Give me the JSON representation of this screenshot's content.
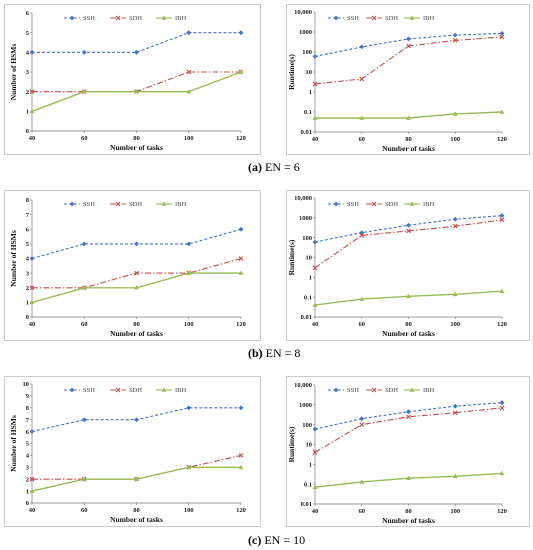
{
  "colors": {
    "SSH": "#4472C4",
    "SDH": "#C0504D",
    "IBH": "#9BBB59",
    "frame": "#bfbfbf"
  },
  "panels": [
    {
      "caption_letter": "(a)",
      "caption_rest": " EN = 6"
    },
    {
      "caption_letter": "(b)",
      "caption_rest": " EN = 8"
    },
    {
      "caption_letter": "(c)",
      "caption_rest": " EN = 10"
    }
  ],
  "chart_data": [
    {
      "type": "line",
      "xlabel": "Number of tasks",
      "ylabel": "Number of HSMs",
      "x": [
        40,
        60,
        80,
        100,
        120
      ],
      "ylim": [
        0,
        6
      ],
      "yticks": [
        0,
        1,
        2,
        3,
        4,
        5,
        6
      ],
      "log": false,
      "legend": "top",
      "series": [
        {
          "name": "SSH",
          "values": [
            4,
            4,
            4,
            5,
            5
          ]
        },
        {
          "name": "SDH",
          "values": [
            2,
            2,
            2,
            3,
            3
          ]
        },
        {
          "name": "IBH",
          "values": [
            1,
            2,
            2,
            2,
            3
          ]
        }
      ]
    },
    {
      "type": "line",
      "xlabel": "Number of tasks",
      "ylabel": "Runtime(s)",
      "x": [
        40,
        60,
        80,
        100,
        120
      ],
      "ylim": [
        0.01,
        10000
      ],
      "yticks": [
        "0.01",
        "0.1",
        "1",
        "10",
        "100",
        "1000",
        "10,000"
      ],
      "log": true,
      "legend": "top",
      "series": [
        {
          "name": "SSH",
          "values": [
            60,
            180,
            450,
            700,
            850
          ]
        },
        {
          "name": "SDH",
          "values": [
            2.5,
            4.5,
            200,
            380,
            560
          ]
        },
        {
          "name": "IBH",
          "values": [
            0.05,
            0.05,
            0.05,
            0.08,
            0.1
          ]
        }
      ]
    },
    {
      "type": "line",
      "xlabel": "Number of tasks",
      "ylabel": "Number of HSMs",
      "x": [
        40,
        60,
        80,
        100,
        120
      ],
      "ylim": [
        0,
        8
      ],
      "yticks": [
        0,
        1,
        2,
        3,
        4,
        5,
        6,
        7,
        8
      ],
      "log": false,
      "legend": "top",
      "series": [
        {
          "name": "SSH",
          "values": [
            4,
            5,
            5,
            5,
            6
          ]
        },
        {
          "name": "SDH",
          "values": [
            2,
            2,
            3,
            3,
            4
          ]
        },
        {
          "name": "IBH",
          "values": [
            1,
            2,
            2,
            3,
            3
          ]
        }
      ]
    },
    {
      "type": "line",
      "xlabel": "Number of tasks",
      "ylabel": "Runtime(s)",
      "x": [
        40,
        60,
        80,
        100,
        120
      ],
      "ylim": [
        0.01,
        10000
      ],
      "yticks": [
        "0.01",
        "0.1",
        "1",
        "10",
        "100",
        "1000",
        "10,000"
      ],
      "log": true,
      "legend": "top",
      "series": [
        {
          "name": "SSH",
          "values": [
            60,
            180,
            420,
            850,
            1300
          ]
        },
        {
          "name": "SDH",
          "values": [
            3,
            130,
            220,
            380,
            800
          ]
        },
        {
          "name": "IBH",
          "values": [
            0.04,
            0.08,
            0.11,
            0.14,
            0.2
          ]
        }
      ]
    },
    {
      "type": "line",
      "xlabel": "Number of tasks",
      "ylabel": "Number of HSMs",
      "x": [
        40,
        60,
        80,
        100,
        120
      ],
      "ylim": [
        0,
        10
      ],
      "yticks": [
        0,
        1,
        2,
        3,
        4,
        5,
        6,
        7,
        8,
        9,
        10
      ],
      "log": false,
      "legend": "top",
      "series": [
        {
          "name": "SSH",
          "values": [
            6,
            7,
            7,
            8,
            8
          ]
        },
        {
          "name": "SDH",
          "values": [
            2,
            2,
            2,
            3,
            4
          ]
        },
        {
          "name": "IBH",
          "values": [
            1,
            2,
            2,
            3,
            3
          ]
        }
      ]
    },
    {
      "type": "line",
      "xlabel": "Number of tasks",
      "ylabel": "Runtime(s)",
      "x": [
        40,
        60,
        80,
        100,
        120
      ],
      "ylim": [
        0.01,
        10000
      ],
      "yticks": [
        "0.01",
        "0.1",
        "1",
        "10",
        "100",
        "1000",
        "10,000"
      ],
      "log": true,
      "legend": "top",
      "series": [
        {
          "name": "SSH",
          "values": [
            60,
            200,
            450,
            850,
            1300
          ]
        },
        {
          "name": "SDH",
          "values": [
            4,
            100,
            250,
            400,
            700
          ]
        },
        {
          "name": "IBH",
          "values": [
            0.07,
            0.13,
            0.2,
            0.25,
            0.35
          ]
        }
      ]
    }
  ]
}
